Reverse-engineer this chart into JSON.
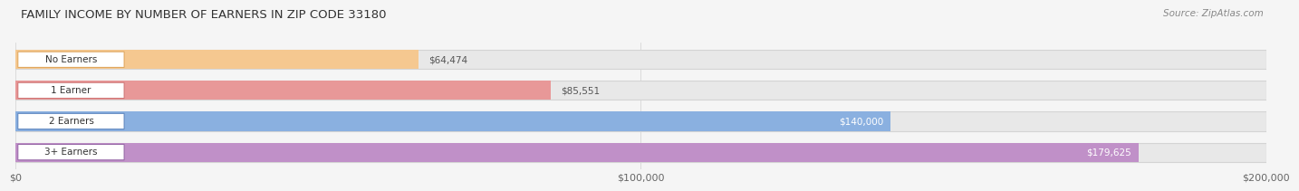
{
  "title": "FAMILY INCOME BY NUMBER OF EARNERS IN ZIP CODE 33180",
  "source_text": "Source: ZipAtlas.com",
  "categories": [
    "No Earners",
    "1 Earner",
    "2 Earners",
    "3+ Earners"
  ],
  "values": [
    64474,
    85551,
    140000,
    179625
  ],
  "value_labels": [
    "$64,474",
    "$85,551",
    "$140,000",
    "$179,625"
  ],
  "bar_colors": [
    "#f5c890",
    "#e89898",
    "#8ab0e0",
    "#c090c8"
  ],
  "track_color": "#e8e8e8",
  "track_edge_color": "#d4d4d4",
  "label_bg_color": "#ffffff",
  "label_border_colors": [
    "#e0a860",
    "#d07878",
    "#6088c0",
    "#9868a8"
  ],
  "xlim": [
    0,
    200000
  ],
  "xticks": [
    0,
    100000,
    200000
  ],
  "xtick_labels": [
    "$0",
    "$100,000",
    "$200,000"
  ],
  "title_fontsize": 9.5,
  "source_fontsize": 7.5,
  "bar_label_fontsize": 7.5,
  "category_fontsize": 7.5,
  "xtick_fontsize": 8,
  "background_color": "#f5f5f5",
  "bar_height": 0.62,
  "value_label_inside_threshold": 120000
}
